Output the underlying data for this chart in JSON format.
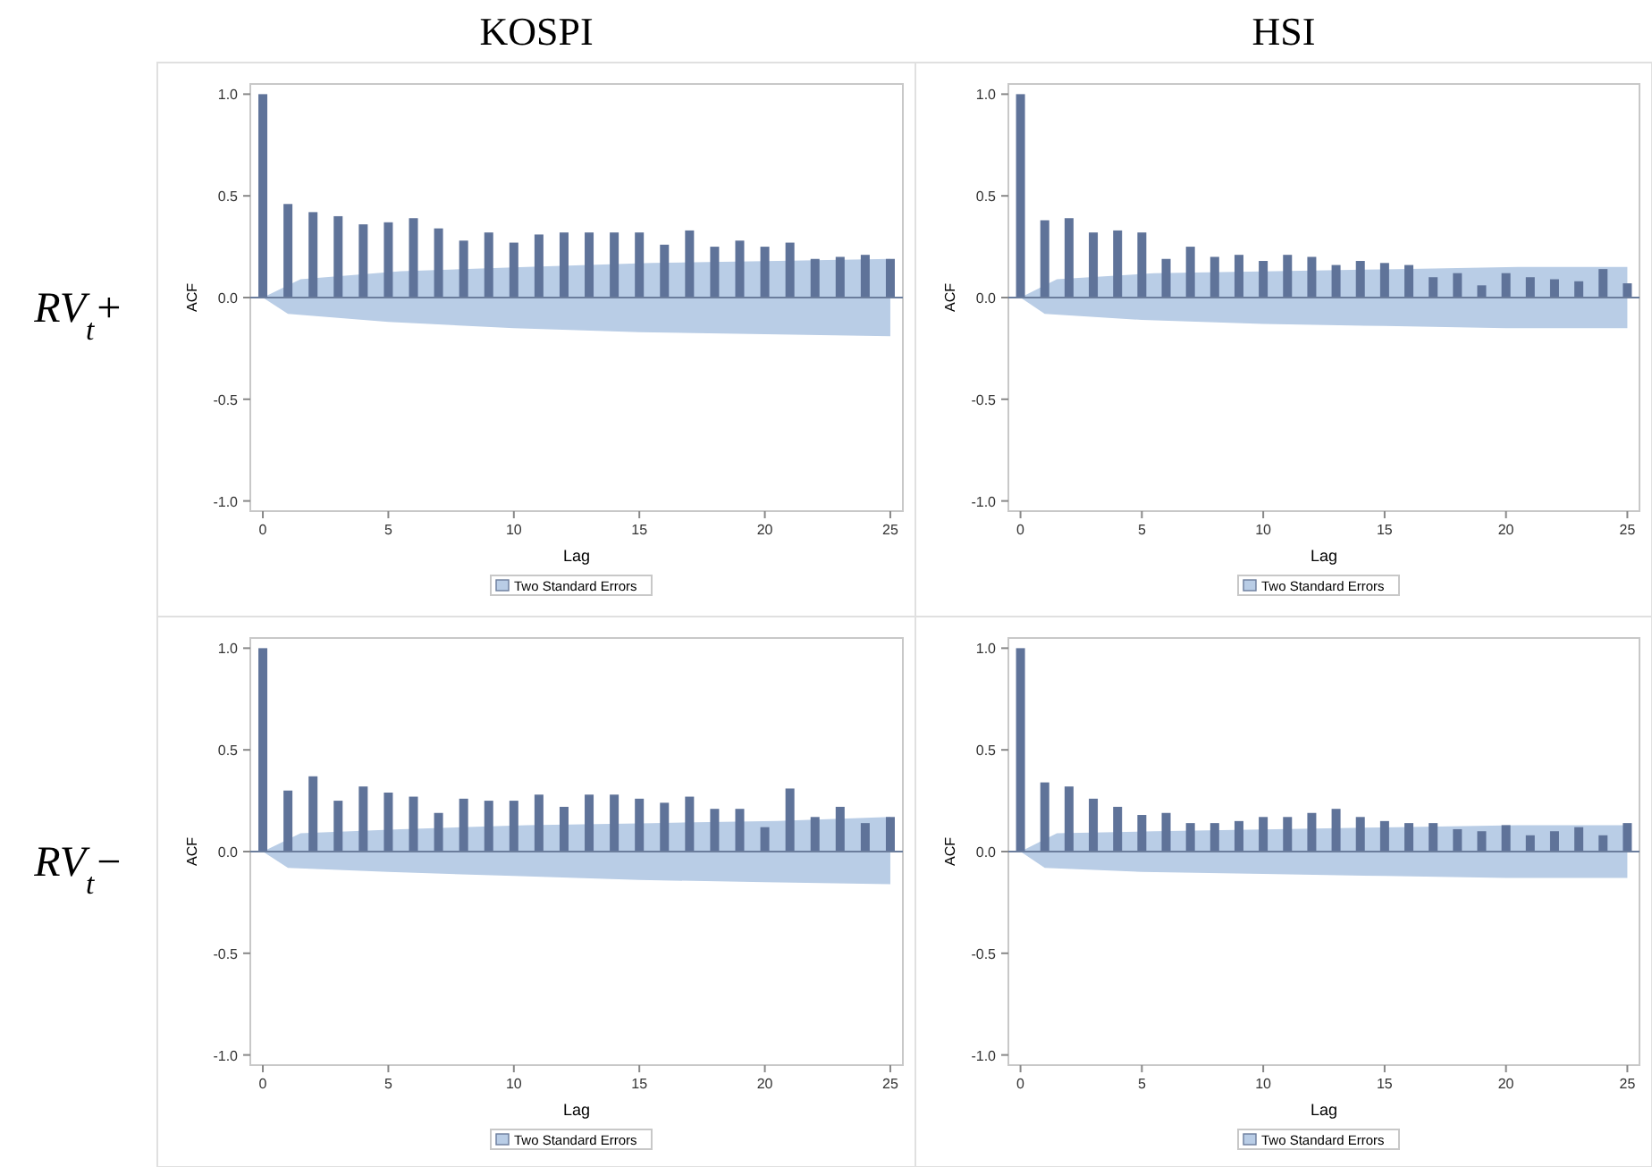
{
  "chart_data": [
    {
      "type": "bar",
      "grid": false,
      "ref_lines": [
        {
          "axis": "y",
          "value": 0,
          "color": "#6b7d9c"
        }
      ],
      "title": "KOSPI",
      "annotations": [
        "RV$_{t}$+"
      ],
      "xlabel": "Lag",
      "ylabel": "ACF",
      "x": [
        0,
        1,
        2,
        3,
        4,
        5,
        6,
        7,
        8,
        9,
        10,
        11,
        12,
        13,
        14,
        15,
        16,
        17,
        18,
        19,
        20,
        21,
        22,
        23,
        24,
        25
      ],
      "xlim": [
        -0.5,
        25.5
      ],
      "xticks": [
        0,
        5,
        10,
        15,
        20,
        25
      ],
      "ylim": [
        -1.05,
        1.05
      ],
      "yticks": [
        {
          "value": -1,
          "label": "-1.0"
        },
        {
          "value": -0.5,
          "label": "-0.5"
        },
        {
          "value": 0,
          "label": "0.0"
        },
        {
          "value": 0.5,
          "label": "0.5"
        },
        {
          "value": 1,
          "label": "1.0"
        }
      ],
      "legend": "bottom",
      "series": [
        {
          "color": "#5f7399",
          "values": [
            1,
            0.46,
            0.42,
            0.4,
            0.36,
            0.37,
            0.39,
            0.34,
            0.28,
            0.32,
            0.27,
            0.31,
            0.32,
            0.32,
            0.32,
            0.32,
            0.26,
            0.33,
            0.25,
            0.28,
            0.25,
            0.27,
            0.19,
            0.2,
            0.21,
            0.19
          ]
        },
        {
          "type": "area",
          "name": "Two Standard Errors",
          "color": "#b9cde6",
          "x": [
            0,
            1.5,
            5.5,
            10.5,
            15.5,
            20.5,
            25
          ],
          "values": [
            0,
            0.09,
            0.13,
            0.15,
            0.17,
            0.18,
            0.19
          ]
        },
        {
          "type": "area",
          "color": "#b9cde6",
          "x": [
            0,
            1,
            5,
            10,
            15,
            20,
            25
          ],
          "values": [
            0,
            -0.08,
            -0.12,
            -0.15,
            -0.17,
            -0.18,
            -0.19
          ]
        }
      ]
    },
    {
      "type": "bar",
      "grid": false,
      "ref_lines": [
        {
          "axis": "y",
          "value": 0,
          "color": "#6b7d9c"
        }
      ],
      "title": "HSI",
      "xlabel": "Lag",
      "ylabel": "ACF",
      "x": [
        0,
        1,
        2,
        3,
        4,
        5,
        6,
        7,
        8,
        9,
        10,
        11,
        12,
        13,
        14,
        15,
        16,
        17,
        18,
        19,
        20,
        21,
        22,
        23,
        24,
        25
      ],
      "xlim": [
        -0.5,
        25.5
      ],
      "xticks": [
        0,
        5,
        10,
        15,
        20,
        25
      ],
      "ylim": [
        -1.05,
        1.05
      ],
      "yticks": [
        {
          "value": -1,
          "label": "-1.0"
        },
        {
          "value": -0.5,
          "label": "-0.5"
        },
        {
          "value": 0,
          "label": "0.0"
        },
        {
          "value": 0.5,
          "label": "0.5"
        },
        {
          "value": 1,
          "label": "1.0"
        }
      ],
      "legend": "bottom",
      "series": [
        {
          "color": "#5f7399",
          "values": [
            1,
            0.38,
            0.39,
            0.32,
            0.33,
            0.32,
            0.19,
            0.25,
            0.2,
            0.21,
            0.18,
            0.21,
            0.2,
            0.16,
            0.18,
            0.17,
            0.16,
            0.1,
            0.12,
            0.06,
            0.12,
            0.1,
            0.09,
            0.08,
            0.14,
            0.07
          ]
        },
        {
          "type": "area",
          "name": "Two Standard Errors",
          "color": "#b9cde6",
          "x": [
            0,
            1.5,
            5.5,
            10.5,
            15.5,
            20.5,
            25
          ],
          "values": [
            0,
            0.09,
            0.12,
            0.13,
            0.14,
            0.15,
            0.15
          ]
        },
        {
          "type": "area",
          "color": "#b9cde6",
          "x": [
            0,
            1,
            5,
            10,
            15,
            20,
            25
          ],
          "values": [
            0,
            -0.08,
            -0.11,
            -0.13,
            -0.14,
            -0.15,
            -0.15
          ]
        }
      ]
    },
    {
      "type": "bar",
      "grid": false,
      "ref_lines": [
        {
          "axis": "y",
          "value": 0,
          "color": "#6b7d9c"
        }
      ],
      "annotations": [
        "RV$_{t}$−"
      ],
      "xlabel": "Lag",
      "ylabel": "ACF",
      "x": [
        0,
        1,
        2,
        3,
        4,
        5,
        6,
        7,
        8,
        9,
        10,
        11,
        12,
        13,
        14,
        15,
        16,
        17,
        18,
        19,
        20,
        21,
        22,
        23,
        24,
        25
      ],
      "xlim": [
        -0.5,
        25.5
      ],
      "xticks": [
        0,
        5,
        10,
        15,
        20,
        25
      ],
      "ylim": [
        -1.05,
        1.05
      ],
      "yticks": [
        {
          "value": -1,
          "label": "-1.0"
        },
        {
          "value": -0.5,
          "label": "-0.5"
        },
        {
          "value": 0,
          "label": "0.0"
        },
        {
          "value": 0.5,
          "label": "0.5"
        },
        {
          "value": 1,
          "label": "1.0"
        }
      ],
      "legend": "bottom",
      "series": [
        {
          "color": "#5f7399",
          "values": [
            1,
            0.3,
            0.37,
            0.25,
            0.32,
            0.29,
            0.27,
            0.19,
            0.26,
            0.25,
            0.25,
            0.28,
            0.22,
            0.28,
            0.28,
            0.26,
            0.24,
            0.27,
            0.21,
            0.21,
            0.12,
            0.31,
            0.17,
            0.22,
            0.14,
            0.17
          ]
        },
        {
          "type": "area",
          "name": "Two Standard Errors",
          "color": "#b9cde6",
          "x": [
            0,
            1.5,
            5.5,
            10.5,
            15.5,
            20.5,
            25
          ],
          "values": [
            0,
            0.09,
            0.11,
            0.13,
            0.14,
            0.15,
            0.17
          ]
        },
        {
          "type": "area",
          "color": "#b9cde6",
          "x": [
            0,
            1,
            5,
            10,
            15,
            20,
            25
          ],
          "values": [
            0,
            -0.08,
            -0.1,
            -0.12,
            -0.14,
            -0.15,
            -0.16
          ]
        }
      ]
    },
    {
      "type": "bar",
      "grid": false,
      "ref_lines": [
        {
          "axis": "y",
          "value": 0,
          "color": "#6b7d9c"
        }
      ],
      "xlabel": "Lag",
      "ylabel": "ACF",
      "x": [
        0,
        1,
        2,
        3,
        4,
        5,
        6,
        7,
        8,
        9,
        10,
        11,
        12,
        13,
        14,
        15,
        16,
        17,
        18,
        19,
        20,
        21,
        22,
        23,
        24,
        25
      ],
      "xlim": [
        -0.5,
        25.5
      ],
      "xticks": [
        0,
        5,
        10,
        15,
        20,
        25
      ],
      "ylim": [
        -1.05,
        1.05
      ],
      "yticks": [
        {
          "value": -1,
          "label": "-1.0"
        },
        {
          "value": -0.5,
          "label": "-0.5"
        },
        {
          "value": 0,
          "label": "0.0"
        },
        {
          "value": 0.5,
          "label": "0.5"
        },
        {
          "value": 1,
          "label": "1.0"
        }
      ],
      "legend": "bottom",
      "series": [
        {
          "color": "#5f7399",
          "values": [
            1,
            0.34,
            0.32,
            0.26,
            0.22,
            0.18,
            0.19,
            0.14,
            0.14,
            0.15,
            0.17,
            0.17,
            0.19,
            0.21,
            0.17,
            0.15,
            0.14,
            0.14,
            0.11,
            0.1,
            0.13,
            0.08,
            0.1,
            0.12,
            0.08,
            0.14
          ]
        },
        {
          "type": "area",
          "name": "Two Standard Errors",
          "color": "#b9cde6",
          "x": [
            0,
            1.5,
            5.5,
            10.5,
            15.5,
            20.5,
            25
          ],
          "values": [
            0,
            0.09,
            0.1,
            0.11,
            0.12,
            0.13,
            0.13
          ]
        },
        {
          "type": "area",
          "color": "#b9cde6",
          "x": [
            0,
            1,
            5,
            10,
            15,
            20,
            25
          ],
          "values": [
            0,
            -0.08,
            -0.1,
            -0.11,
            -0.12,
            -0.13,
            -0.13
          ]
        }
      ]
    }
  ]
}
